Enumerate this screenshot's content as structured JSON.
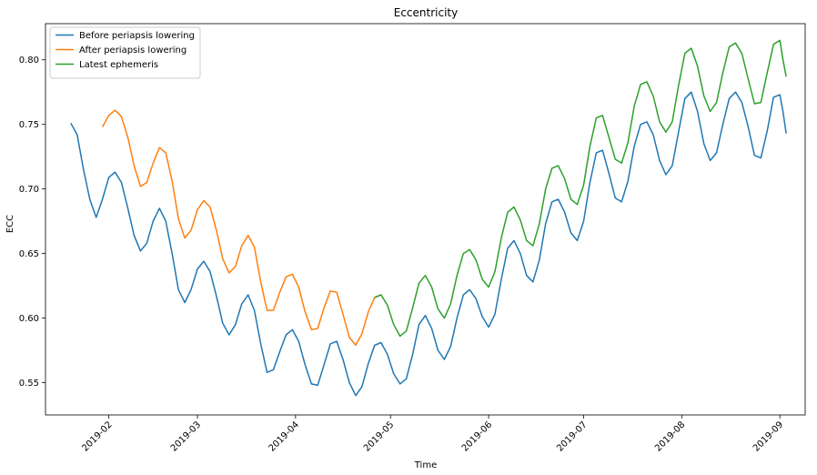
{
  "chart_data": {
    "type": "line",
    "title": "Eccentricity",
    "xlabel": "Time",
    "ylabel": "ECC",
    "x_type": "date",
    "xlim": [
      "2019-01-12",
      "2019-09-09"
    ],
    "ylim": [
      0.525,
      0.828
    ],
    "x_ticks": [
      "2019-02",
      "2019-03",
      "2019-04",
      "2019-05",
      "2019-06",
      "2019-07",
      "2019-08",
      "2019-09"
    ],
    "y_ticks": [
      "0.55",
      "0.60",
      "0.65",
      "0.70",
      "0.75",
      "0.80"
    ],
    "grid": false,
    "legend_position": "top-left",
    "series": [
      {
        "name": "Before periapsis lowering",
        "color": "#1f77b4",
        "points": [
          [
            "2019-01-20",
            0.751
          ],
          [
            "2019-01-22",
            0.742
          ],
          [
            "2019-01-24",
            0.715
          ],
          [
            "2019-01-26",
            0.692
          ],
          [
            "2019-01-28",
            0.678
          ],
          [
            "2019-01-30",
            0.692
          ],
          [
            "2019-02-01",
            0.709
          ],
          [
            "2019-02-03",
            0.713
          ],
          [
            "2019-02-05",
            0.705
          ],
          [
            "2019-02-07",
            0.685
          ],
          [
            "2019-02-09",
            0.664
          ],
          [
            "2019-02-11",
            0.652
          ],
          [
            "2019-02-13",
            0.658
          ],
          [
            "2019-02-15",
            0.675
          ],
          [
            "2019-02-17",
            0.685
          ],
          [
            "2019-02-19",
            0.675
          ],
          [
            "2019-02-21",
            0.65
          ],
          [
            "2019-02-23",
            0.622
          ],
          [
            "2019-02-25",
            0.612
          ],
          [
            "2019-02-27",
            0.622
          ],
          [
            "2019-03-01",
            0.638
          ],
          [
            "2019-03-03",
            0.644
          ],
          [
            "2019-03-05",
            0.636
          ],
          [
            "2019-03-07",
            0.617
          ],
          [
            "2019-03-09",
            0.596
          ],
          [
            "2019-03-11",
            0.587
          ],
          [
            "2019-03-13",
            0.595
          ],
          [
            "2019-03-15",
            0.611
          ],
          [
            "2019-03-17",
            0.618
          ],
          [
            "2019-03-19",
            0.606
          ],
          [
            "2019-03-21",
            0.58
          ],
          [
            "2019-03-23",
            0.558
          ],
          [
            "2019-03-25",
            0.56
          ],
          [
            "2019-03-27",
            0.574
          ],
          [
            "2019-03-29",
            0.587
          ],
          [
            "2019-03-31",
            0.591
          ],
          [
            "2019-04-02",
            0.582
          ],
          [
            "2019-04-04",
            0.564
          ],
          [
            "2019-04-06",
            0.549
          ],
          [
            "2019-04-08",
            0.548
          ],
          [
            "2019-04-10",
            0.564
          ],
          [
            "2019-04-12",
            0.58
          ],
          [
            "2019-04-14",
            0.582
          ],
          [
            "2019-04-16",
            0.568
          ],
          [
            "2019-04-18",
            0.55
          ],
          [
            "2019-04-20",
            0.54
          ],
          [
            "2019-04-22",
            0.547
          ],
          [
            "2019-04-24",
            0.565
          ],
          [
            "2019-04-26",
            0.579
          ],
          [
            "2019-04-28",
            0.581
          ],
          [
            "2019-04-30",
            0.572
          ],
          [
            "2019-05-02",
            0.557
          ],
          [
            "2019-05-04",
            0.549
          ],
          [
            "2019-05-06",
            0.553
          ],
          [
            "2019-05-08",
            0.572
          ],
          [
            "2019-05-10",
            0.595
          ],
          [
            "2019-05-12",
            0.602
          ],
          [
            "2019-05-14",
            0.592
          ],
          [
            "2019-05-16",
            0.575
          ],
          [
            "2019-05-18",
            0.568
          ],
          [
            "2019-05-20",
            0.578
          ],
          [
            "2019-05-22",
            0.6
          ],
          [
            "2019-05-24",
            0.618
          ],
          [
            "2019-05-26",
            0.622
          ],
          [
            "2019-05-28",
            0.615
          ],
          [
            "2019-05-30",
            0.601
          ],
          [
            "2019-06-01",
            0.593
          ],
          [
            "2019-06-03",
            0.603
          ],
          [
            "2019-06-05",
            0.63
          ],
          [
            "2019-06-07",
            0.654
          ],
          [
            "2019-06-09",
            0.66
          ],
          [
            "2019-06-11",
            0.65
          ],
          [
            "2019-06-13",
            0.633
          ],
          [
            "2019-06-15",
            0.628
          ],
          [
            "2019-06-17",
            0.645
          ],
          [
            "2019-06-19",
            0.673
          ],
          [
            "2019-06-21",
            0.69
          ],
          [
            "2019-06-23",
            0.692
          ],
          [
            "2019-06-25",
            0.682
          ],
          [
            "2019-06-27",
            0.666
          ],
          [
            "2019-06-29",
            0.66
          ],
          [
            "2019-07-01",
            0.675
          ],
          [
            "2019-07-03",
            0.705
          ],
          [
            "2019-07-05",
            0.728
          ],
          [
            "2019-07-07",
            0.73
          ],
          [
            "2019-07-09",
            0.712
          ],
          [
            "2019-07-11",
            0.693
          ],
          [
            "2019-07-13",
            0.69
          ],
          [
            "2019-07-15",
            0.706
          ],
          [
            "2019-07-17",
            0.733
          ],
          [
            "2019-07-19",
            0.75
          ],
          [
            "2019-07-21",
            0.752
          ],
          [
            "2019-07-23",
            0.742
          ],
          [
            "2019-07-25",
            0.722
          ],
          [
            "2019-07-27",
            0.711
          ],
          [
            "2019-07-29",
            0.718
          ],
          [
            "2019-07-31",
            0.744
          ],
          [
            "2019-08-02",
            0.77
          ],
          [
            "2019-08-04",
            0.775
          ],
          [
            "2019-08-06",
            0.76
          ],
          [
            "2019-08-08",
            0.735
          ],
          [
            "2019-08-10",
            0.722
          ],
          [
            "2019-08-12",
            0.728
          ],
          [
            "2019-08-14",
            0.75
          ],
          [
            "2019-08-16",
            0.77
          ],
          [
            "2019-08-18",
            0.775
          ],
          [
            "2019-08-20",
            0.767
          ],
          [
            "2019-08-22",
            0.748
          ],
          [
            "2019-08-24",
            0.726
          ],
          [
            "2019-08-26",
            0.724
          ],
          [
            "2019-08-28",
            0.745
          ],
          [
            "2019-08-30",
            0.771
          ],
          [
            "2019-09-01",
            0.773
          ],
          [
            "2019-09-02",
            0.76
          ],
          [
            "2019-09-03",
            0.743
          ]
        ]
      },
      {
        "name": "After periapsis lowering",
        "color": "#ff7f0e",
        "points": [
          [
            "2019-01-30",
            0.748
          ],
          [
            "2019-02-01",
            0.757
          ],
          [
            "2019-02-03",
            0.761
          ],
          [
            "2019-02-05",
            0.756
          ],
          [
            "2019-02-07",
            0.74
          ],
          [
            "2019-02-09",
            0.718
          ],
          [
            "2019-02-11",
            0.702
          ],
          [
            "2019-02-13",
            0.705
          ],
          [
            "2019-02-15",
            0.72
          ],
          [
            "2019-02-17",
            0.732
          ],
          [
            "2019-02-19",
            0.728
          ],
          [
            "2019-02-21",
            0.706
          ],
          [
            "2019-02-23",
            0.677
          ],
          [
            "2019-02-25",
            0.662
          ],
          [
            "2019-02-27",
            0.668
          ],
          [
            "2019-03-01",
            0.684
          ],
          [
            "2019-03-03",
            0.691
          ],
          [
            "2019-03-05",
            0.686
          ],
          [
            "2019-03-07",
            0.668
          ],
          [
            "2019-03-09",
            0.646
          ],
          [
            "2019-03-11",
            0.635
          ],
          [
            "2019-03-13",
            0.64
          ],
          [
            "2019-03-15",
            0.656
          ],
          [
            "2019-03-17",
            0.664
          ],
          [
            "2019-03-19",
            0.655
          ],
          [
            "2019-03-21",
            0.628
          ],
          [
            "2019-03-23",
            0.606
          ],
          [
            "2019-03-25",
            0.606
          ],
          [
            "2019-03-27",
            0.62
          ],
          [
            "2019-03-29",
            0.632
          ],
          [
            "2019-03-31",
            0.634
          ],
          [
            "2019-04-02",
            0.624
          ],
          [
            "2019-04-04",
            0.605
          ],
          [
            "2019-04-06",
            0.591
          ],
          [
            "2019-04-08",
            0.592
          ],
          [
            "2019-04-10",
            0.608
          ],
          [
            "2019-04-12",
            0.621
          ],
          [
            "2019-04-14",
            0.62
          ],
          [
            "2019-04-16",
            0.603
          ],
          [
            "2019-04-18",
            0.585
          ],
          [
            "2019-04-20",
            0.579
          ],
          [
            "2019-04-22",
            0.588
          ],
          [
            "2019-04-24",
            0.605
          ],
          [
            "2019-04-26",
            0.616
          ],
          [
            "2019-04-28",
            0.618
          ]
        ]
      },
      {
        "name": "Latest ephemeris",
        "color": "#2ca02c",
        "points": [
          [
            "2019-04-26",
            0.616
          ],
          [
            "2019-04-28",
            0.618
          ],
          [
            "2019-04-30",
            0.61
          ],
          [
            "2019-05-02",
            0.595
          ],
          [
            "2019-05-04",
            0.586
          ],
          [
            "2019-05-06",
            0.59
          ],
          [
            "2019-05-08",
            0.608
          ],
          [
            "2019-05-10",
            0.627
          ],
          [
            "2019-05-12",
            0.633
          ],
          [
            "2019-05-14",
            0.624
          ],
          [
            "2019-05-16",
            0.607
          ],
          [
            "2019-05-18",
            0.6
          ],
          [
            "2019-05-20",
            0.611
          ],
          [
            "2019-05-22",
            0.633
          ],
          [
            "2019-05-24",
            0.65
          ],
          [
            "2019-05-26",
            0.653
          ],
          [
            "2019-05-28",
            0.645
          ],
          [
            "2019-05-30",
            0.63
          ],
          [
            "2019-06-01",
            0.624
          ],
          [
            "2019-06-03",
            0.636
          ],
          [
            "2019-06-05",
            0.662
          ],
          [
            "2019-06-07",
            0.682
          ],
          [
            "2019-06-09",
            0.686
          ],
          [
            "2019-06-11",
            0.676
          ],
          [
            "2019-06-13",
            0.66
          ],
          [
            "2019-06-15",
            0.656
          ],
          [
            "2019-06-17",
            0.673
          ],
          [
            "2019-06-19",
            0.7
          ],
          [
            "2019-06-21",
            0.716
          ],
          [
            "2019-06-23",
            0.718
          ],
          [
            "2019-06-25",
            0.708
          ],
          [
            "2019-06-27",
            0.692
          ],
          [
            "2019-06-29",
            0.688
          ],
          [
            "2019-07-01",
            0.703
          ],
          [
            "2019-07-03",
            0.733
          ],
          [
            "2019-07-05",
            0.755
          ],
          [
            "2019-07-07",
            0.757
          ],
          [
            "2019-07-09",
            0.74
          ],
          [
            "2019-07-11",
            0.723
          ],
          [
            "2019-07-13",
            0.72
          ],
          [
            "2019-07-15",
            0.736
          ],
          [
            "2019-07-17",
            0.764
          ],
          [
            "2019-07-19",
            0.781
          ],
          [
            "2019-07-21",
            0.783
          ],
          [
            "2019-07-23",
            0.772
          ],
          [
            "2019-07-25",
            0.752
          ],
          [
            "2019-07-27",
            0.744
          ],
          [
            "2019-07-29",
            0.752
          ],
          [
            "2019-07-31",
            0.78
          ],
          [
            "2019-08-02",
            0.805
          ],
          [
            "2019-08-04",
            0.809
          ],
          [
            "2019-08-06",
            0.795
          ],
          [
            "2019-08-08",
            0.772
          ],
          [
            "2019-08-10",
            0.76
          ],
          [
            "2019-08-12",
            0.767
          ],
          [
            "2019-08-14",
            0.79
          ],
          [
            "2019-08-16",
            0.81
          ],
          [
            "2019-08-18",
            0.813
          ],
          [
            "2019-08-20",
            0.805
          ],
          [
            "2019-08-22",
            0.785
          ],
          [
            "2019-08-24",
            0.766
          ],
          [
            "2019-08-26",
            0.767
          ],
          [
            "2019-08-28",
            0.79
          ],
          [
            "2019-08-30",
            0.812
          ],
          [
            "2019-09-01",
            0.815
          ],
          [
            "2019-09-02",
            0.8
          ],
          [
            "2019-09-03",
            0.787
          ]
        ]
      }
    ]
  }
}
